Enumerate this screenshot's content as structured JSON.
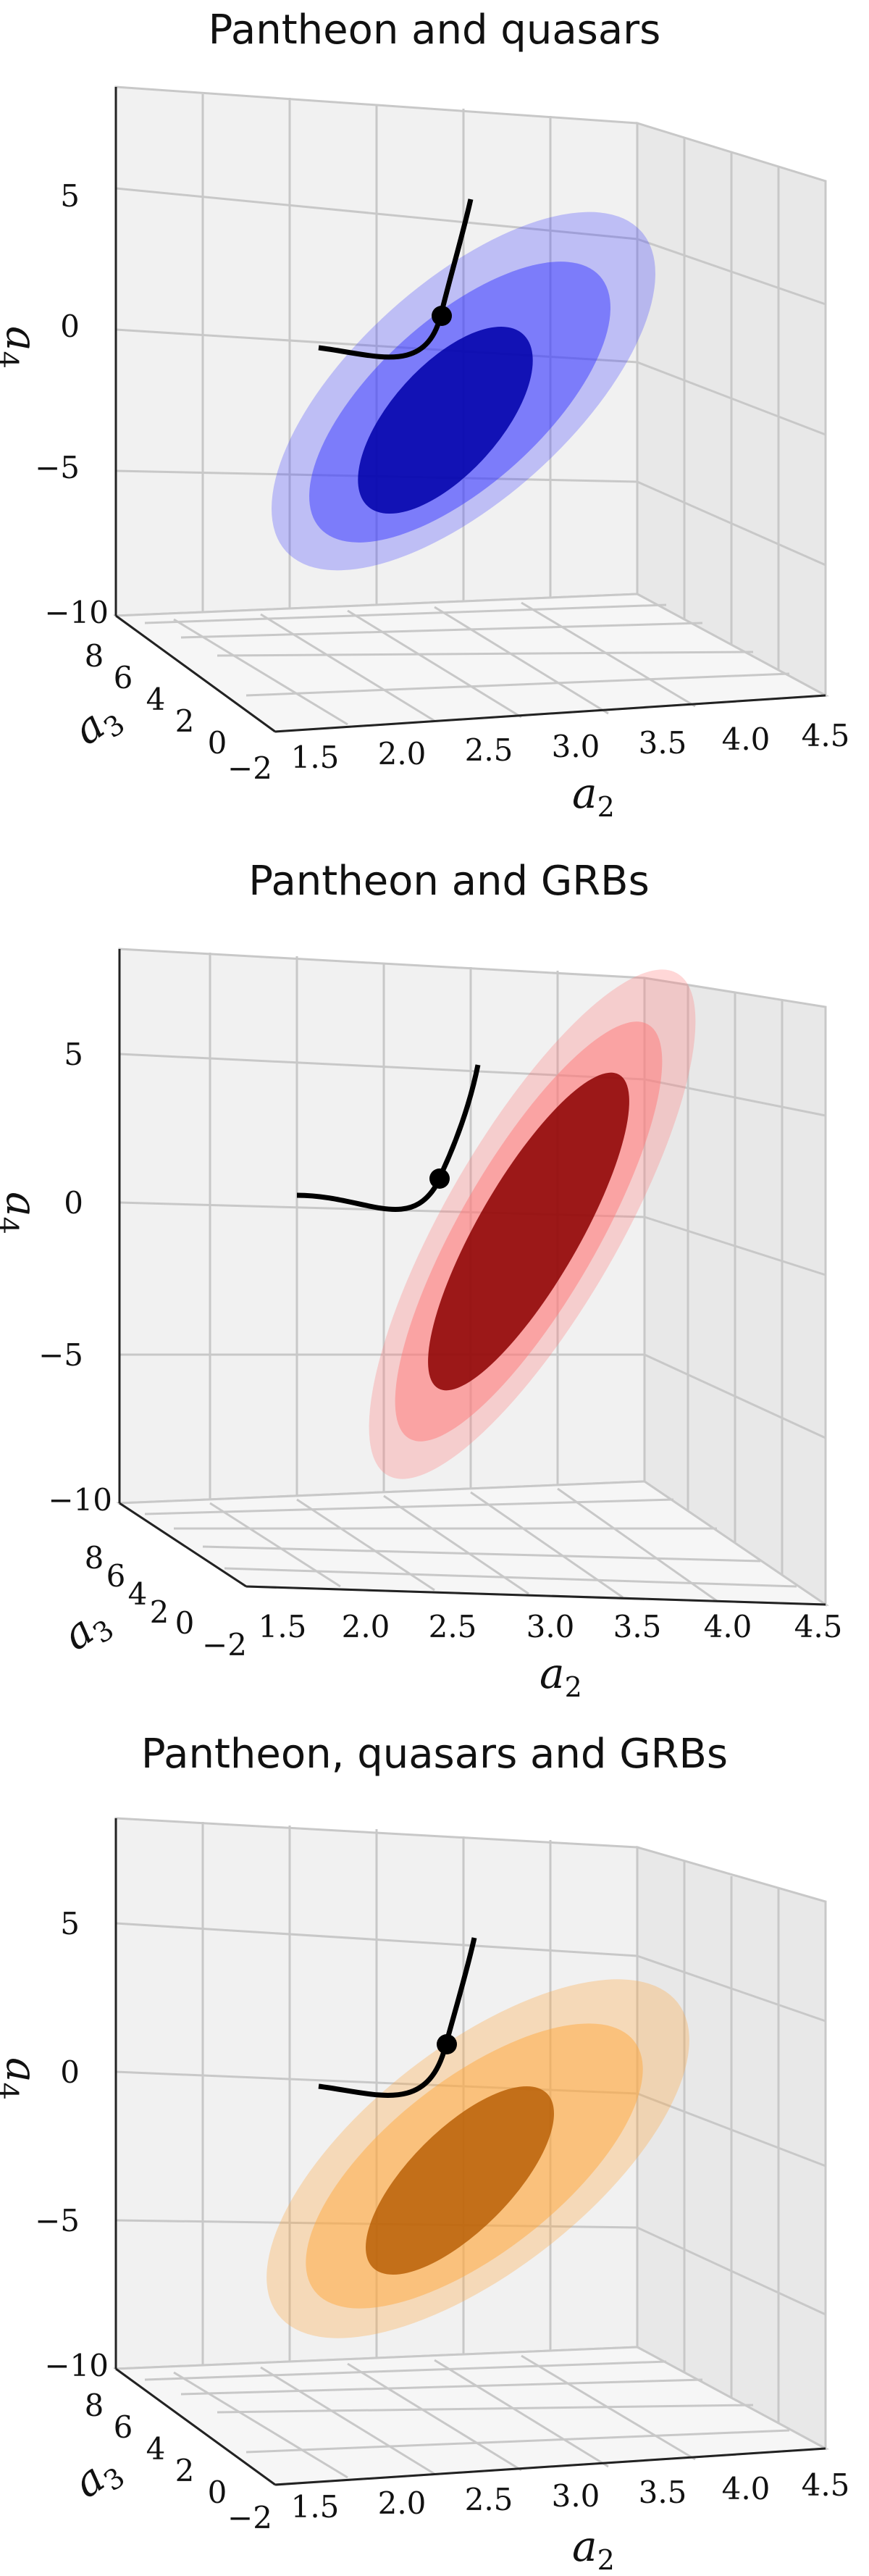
{
  "chart_data": [
    {
      "type": "scatter",
      "title": "Pantheon and quasars",
      "xlabel": "a_2",
      "ylabel": "a_3",
      "zlabel": "a_4",
      "x_ticks": [
        "1.5",
        "2.0",
        "2.5",
        "3.0",
        "3.5",
        "4.0",
        "4.5"
      ],
      "y_ticks": [
        "−2",
        "0",
        "2",
        "4",
        "6",
        "8"
      ],
      "z_ticks": [
        "−10",
        "−5",
        "0",
        "5"
      ],
      "xlim": [
        1.5,
        4.5
      ],
      "ylim": [
        -2,
        9
      ],
      "zlim": [
        -10,
        8
      ],
      "series": [
        {
          "kind": "cloud",
          "color": "#3a3aff",
          "core_color": "#0000a8",
          "center": {
            "x": 2.95,
            "y": 4.0,
            "z": -2.6
          },
          "spread": {
            "x": 0.45,
            "y": 2.2,
            "z": 2.8
          }
        }
      ],
      "reference_curve": {
        "color": "#000000",
        "marker": {
          "x": 2.55,
          "y": 3.0,
          "z": 0.5
        }
      }
    },
    {
      "type": "scatter",
      "title": "Pantheon and GRBs",
      "xlabel": "a_2",
      "ylabel": "a_3",
      "zlabel": "a_4",
      "x_ticks": [
        "1.5",
        "2.0",
        "2.5",
        "3.0",
        "3.5",
        "4.0",
        "4.5"
      ],
      "y_ticks": [
        "−2",
        "0",
        "2",
        "4",
        "6",
        "8"
      ],
      "z_ticks": [
        "−10",
        "−5",
        "0",
        "5"
      ],
      "xlim": [
        1.5,
        4.5
      ],
      "ylim": [
        -2,
        9
      ],
      "zlim": [
        -10,
        8
      ],
      "series": [
        {
          "kind": "cloud",
          "color": "#ff7a7a",
          "core_color": "#8b0000",
          "center": {
            "x": 3.0,
            "y": 4.0,
            "z": 0.8
          },
          "spread": {
            "x": 0.35,
            "y": 1.8,
            "z": 3.4
          }
        }
      ],
      "reference_curve": {
        "color": "#000000",
        "marker": {
          "x": 2.55,
          "y": 3.0,
          "z": 0.5
        }
      }
    },
    {
      "type": "scatter",
      "title": "Pantheon, quasars and GRBs",
      "xlabel": "a_2",
      "ylabel": "a_3",
      "zlabel": "a_4",
      "x_ticks": [
        "1.5",
        "2.0",
        "2.5",
        "3.0",
        "3.5",
        "4.0",
        "4.5"
      ],
      "y_ticks": [
        "−2",
        "0",
        "2",
        "4",
        "6",
        "8"
      ],
      "z_ticks": [
        "−10",
        "−5",
        "0",
        "5"
      ],
      "xlim": [
        1.5,
        4.5
      ],
      "ylim": [
        -2,
        9
      ],
      "zlim": [
        -10,
        8
      ],
      "series": [
        {
          "kind": "cloud",
          "color": "#ffa940",
          "core_color": "#b55a00",
          "center": {
            "x": 3.0,
            "y": 4.0,
            "z": -2.6
          },
          "spread": {
            "x": 0.5,
            "y": 2.2,
            "z": 2.6
          }
        }
      ],
      "reference_curve": {
        "color": "#000000",
        "marker": {
          "x": 2.55,
          "y": 3.0,
          "z": 0.5
        }
      }
    }
  ]
}
